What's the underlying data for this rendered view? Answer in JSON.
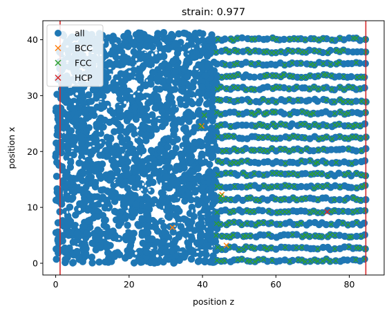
{
  "chart_data": {
    "type": "scatter",
    "title": "strain: 0.977",
    "xlabel": "position z",
    "ylabel": "position x",
    "xlim": [
      -3.5,
      89.5
    ],
    "ylim": [
      -2.1,
      43.4
    ],
    "xticks": [
      0,
      20,
      40,
      60,
      80
    ],
    "yticks": [
      0,
      10,
      20,
      30,
      40
    ],
    "grid": false,
    "legend_position": "top-left",
    "legend": [
      "all",
      "BCC",
      "FCC",
      "HCP"
    ],
    "vlines": [
      {
        "x": 1.2,
        "color": "#d62728"
      },
      {
        "x": 84.5,
        "color": "#d62728"
      }
    ],
    "series": [
      {
        "name": "all",
        "marker": "circle",
        "color": "#1f77b4",
        "description_region_disordered": {
          "z": [
            0,
            44
          ],
          "x": [
            0,
            41.3
          ]
        },
        "description_region_layered": {
          "z": [
            44,
            85
          ],
          "x": [
            0,
            41.3
          ],
          "layer_spacing_x": 2.2
        }
      },
      {
        "name": "BCC",
        "marker": "x",
        "color": "#ff7f0e",
        "points": [
          [
            31.8,
            6.4
          ],
          [
            39.8,
            24.6
          ],
          [
            45.3,
            12.3
          ],
          [
            46.5,
            3.2
          ]
        ]
      },
      {
        "name": "FCC",
        "marker": "x",
        "color": "#2ca02c",
        "points": [
          [
            39.5,
            24.5
          ],
          [
            40.5,
            26.5
          ],
          [
            45,
            12
          ]
        ]
      },
      {
        "name": "HCP",
        "marker": "x",
        "color": "#d62728",
        "points": [
          [
            74,
            9.2
          ]
        ]
      }
    ],
    "colors": {
      "all": "#1f77b4",
      "BCC": "#ff7f0e",
      "FCC": "#2ca02c",
      "HCP": "#d62728",
      "vline": "#d62728"
    }
  }
}
